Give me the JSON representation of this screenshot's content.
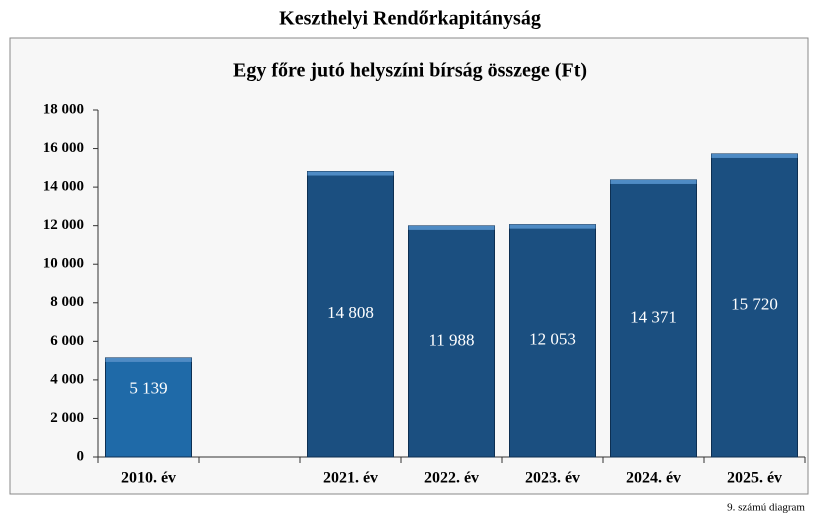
{
  "header": {
    "title": "Keszthelyi Rendőrkapitányság"
  },
  "chart_data": {
    "type": "bar",
    "title": "Egy főre jutó helyszíni bírság összege (Ft)",
    "categories": [
      "2010. év",
      null,
      "2021. év",
      "2022. év",
      "2023. év",
      "2024. év",
      "2025. év"
    ],
    "values": [
      5139,
      null,
      14808,
      11988,
      12053,
      14371,
      15720
    ],
    "value_labels": [
      "5 139",
      null,
      "14 808",
      "11 988",
      "12 053",
      "14 371",
      "15 720"
    ],
    "colors": [
      "#1f6aa8",
      null,
      "#1b4f80",
      "#1b4f80",
      "#1b4f80",
      "#1b4f80",
      "#1b4f80"
    ],
    "ylim": [
      0,
      18000
    ],
    "yticks": [
      0,
      {
        "value": 2000,
        "label": "2 000"
      },
      {
        "value": 4000,
        "label": "4 000"
      },
      {
        "value": 6000,
        "label": "6 000"
      },
      {
        "value": 8000,
        "label": "8 000"
      },
      {
        "value": 10000,
        "label": "10 000"
      },
      {
        "value": 12000,
        "label": "12 000"
      },
      {
        "value": 14000,
        "label": "14 000"
      },
      {
        "value": 16000,
        "label": "16 000"
      },
      {
        "value": 18000,
        "label": "18 000"
      }
    ]
  },
  "footer": {
    "caption": "9. számú diagram"
  }
}
